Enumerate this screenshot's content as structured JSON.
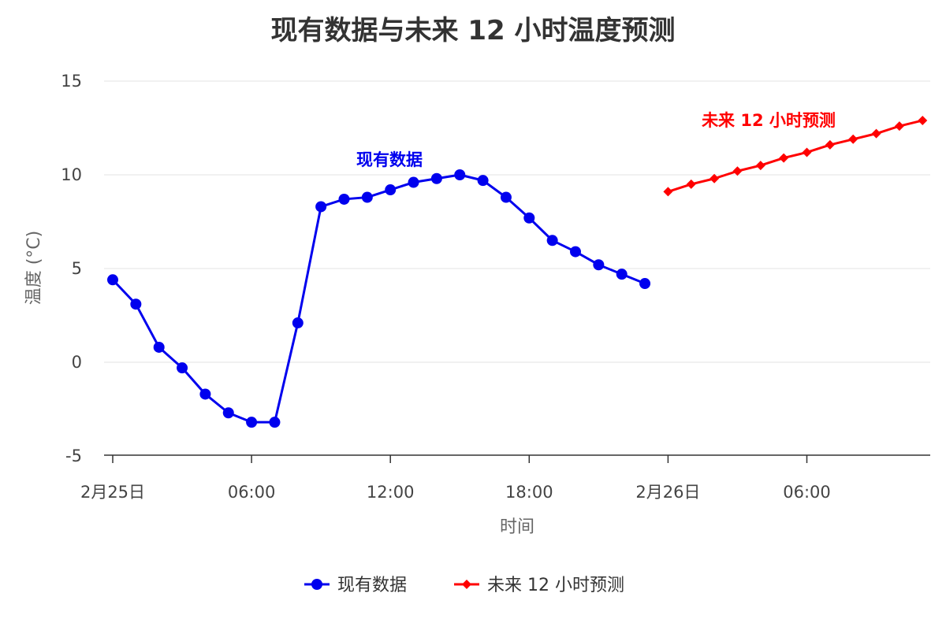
{
  "chart_data": {
    "type": "line",
    "title": "现有数据与未来 12 小时温度预测",
    "xlabel": "时间",
    "ylabel": "温度 (°C)",
    "ylim": [
      -5,
      15
    ],
    "yticks": [
      "15",
      "10",
      "5",
      "0",
      "-5"
    ],
    "xlim": [
      "2月25日 00:00",
      "2月26日 11:00"
    ],
    "xticks": [
      "2月25日",
      "06:00",
      "12:00",
      "18:00",
      "2月26日",
      "06:00"
    ],
    "grid": "horizontal",
    "legend_position": "bottom-center",
    "series": [
      {
        "name": "现有数据",
        "color": "#0000ee",
        "marker": "circle",
        "annotation": "现有数据",
        "x": [
          "2月25日 00:00",
          "01:00",
          "02:00",
          "03:00",
          "04:00",
          "05:00",
          "06:00",
          "07:00",
          "08:00",
          "09:00",
          "10:00",
          "11:00",
          "12:00",
          "13:00",
          "14:00",
          "15:00",
          "16:00",
          "17:00",
          "18:00",
          "19:00",
          "20:00",
          "21:00",
          "22:00",
          "23:00"
        ],
        "values": [
          4.4,
          3.1,
          0.8,
          -0.3,
          -1.7,
          -2.7,
          -3.2,
          -3.2,
          2.1,
          8.3,
          8.7,
          8.8,
          9.2,
          9.6,
          9.8,
          10.0,
          9.7,
          8.8,
          7.7,
          6.5,
          5.9,
          5.2,
          4.7,
          4.2
        ]
      },
      {
        "name": "未来 12 小时预测",
        "color": "#ff0000",
        "marker": "diamond",
        "annotation": "未来 12 小时预测",
        "x": [
          "2月26日 00:00",
          "01:00",
          "02:00",
          "03:00",
          "04:00",
          "05:00",
          "06:00",
          "07:00",
          "08:00",
          "09:00",
          "10:00",
          "11:00"
        ],
        "values": [
          9.1,
          9.5,
          9.8,
          10.2,
          10.5,
          10.9,
          11.2,
          11.6,
          11.9,
          12.2,
          12.6,
          12.9
        ]
      }
    ]
  }
}
